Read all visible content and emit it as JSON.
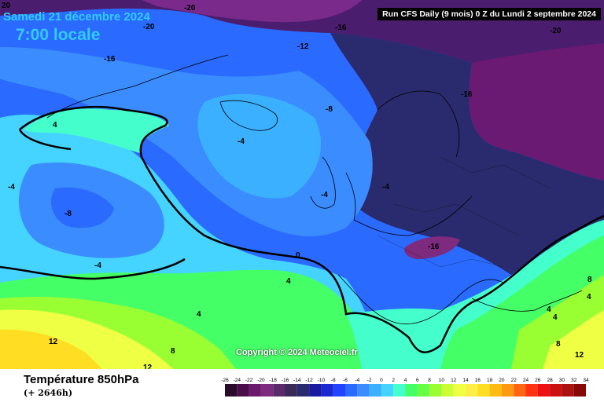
{
  "header": {
    "date": "Samedi 21 décembre 2024",
    "time": "7:00 locale",
    "run_info": "Run CFS Daily (9 mois) 0 Z du Lundi 2 septembre 2024"
  },
  "footer": {
    "parameter": "Température 850hPa",
    "lead_time": "(+ 2646h)",
    "copyright": "Copyright © 2024 Meteociel.fr"
  },
  "legend": {
    "ticks": [
      "-26",
      "-24",
      "-22",
      "-20",
      "-18",
      "-16",
      "-14",
      "-12",
      "-10",
      "-8",
      "-6",
      "-4",
      "-2",
      "0",
      "2",
      "4",
      "6",
      "8",
      "10",
      "12",
      "14",
      "16",
      "18",
      "20",
      "22",
      "24",
      "26",
      "28",
      "30",
      "32",
      "34"
    ],
    "colors": [
      "#2a0a2a",
      "#4a0d4a",
      "#6a1a6a",
      "#7e2a7e",
      "#5a2a6a",
      "#3a2a5a",
      "#2a2a6e",
      "#1a1aa0",
      "#1a2ad0",
      "#2244ff",
      "#2a6aff",
      "#3a8cff",
      "#3ab0ff",
      "#44d4ff",
      "#44ffcc",
      "#44ff66",
      "#66ff44",
      "#99ff33",
      "#ccff33",
      "#eeff44",
      "#ffee44",
      "#ffdd22",
      "#ffbb11",
      "#ff9911",
      "#ff6611",
      "#ff3311",
      "#ee1111",
      "#cc1111",
      "#aa1111",
      "#880808"
    ]
  },
  "map_labels": [
    {
      "text": "20"
    },
    {
      "text": "-20"
    },
    {
      "text": "-20"
    },
    {
      "text": "-16"
    },
    {
      "text": "-16"
    },
    {
      "text": "-12"
    },
    {
      "text": "-20"
    },
    {
      "text": "-16"
    },
    {
      "text": "-8"
    },
    {
      "text": "4"
    },
    {
      "text": "-4"
    },
    {
      "text": "-4"
    },
    {
      "text": "-8"
    },
    {
      "text": "-4"
    },
    {
      "text": "-4"
    },
    {
      "text": "-16"
    },
    {
      "text": "0"
    },
    {
      "text": "-4"
    },
    {
      "text": "4"
    },
    {
      "text": "4"
    },
    {
      "text": "8"
    },
    {
      "text": "12"
    },
    {
      "text": "12"
    },
    {
      "text": "8"
    },
    {
      "text": "4"
    },
    {
      "text": "4"
    },
    {
      "text": "8"
    },
    {
      "text": "12"
    },
    {
      "text": "4"
    }
  ]
}
